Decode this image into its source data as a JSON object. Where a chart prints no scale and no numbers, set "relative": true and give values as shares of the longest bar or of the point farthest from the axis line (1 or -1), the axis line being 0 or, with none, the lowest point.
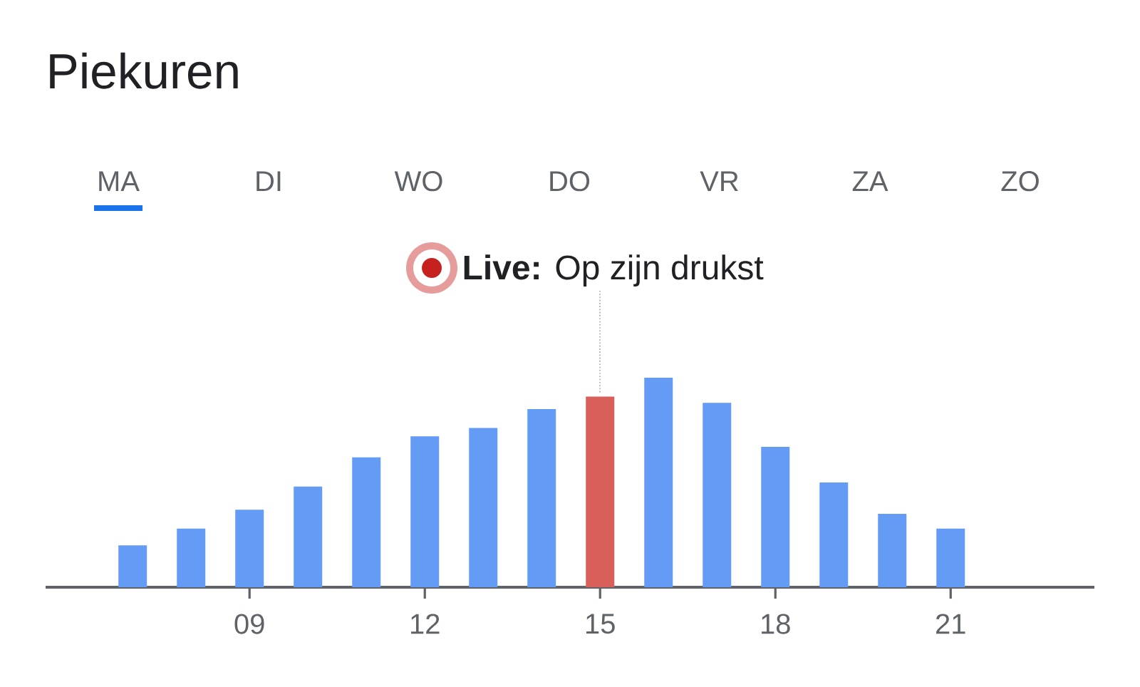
{
  "chart_data": {
    "type": "bar",
    "title": "Piekuren",
    "subtitle": [
      "MA",
      "DI",
      "WO",
      "DO",
      "VR",
      "ZA",
      "ZO"
    ],
    "categories": [
      null,
      null,
      "09",
      null,
      null,
      "12",
      null,
      null,
      "15",
      null,
      null,
      "18",
      null,
      null,
      "21"
    ],
    "values": [
      0.2,
      0.28,
      0.37,
      0.48,
      0.62,
      0.72,
      0.76,
      0.85,
      0.91,
      1,
      0.88,
      0.67,
      0.5,
      0.35,
      0.28
    ],
    "colors": [
      "#639bf5",
      "#639bf5",
      "#639bf5",
      "#639bf5",
      "#639bf5",
      "#639bf5",
      "#639bf5",
      "#639bf5",
      "#d9605a",
      "#639bf5",
      "#639bf5",
      "#639bf5",
      "#639bf5",
      "#639bf5",
      "#639bf5"
    ],
    "relative": true,
    "annotations": [
      {
        "text": "**Live:** Op zijn drukst",
        "x": "15"
      }
    ]
  }
}
